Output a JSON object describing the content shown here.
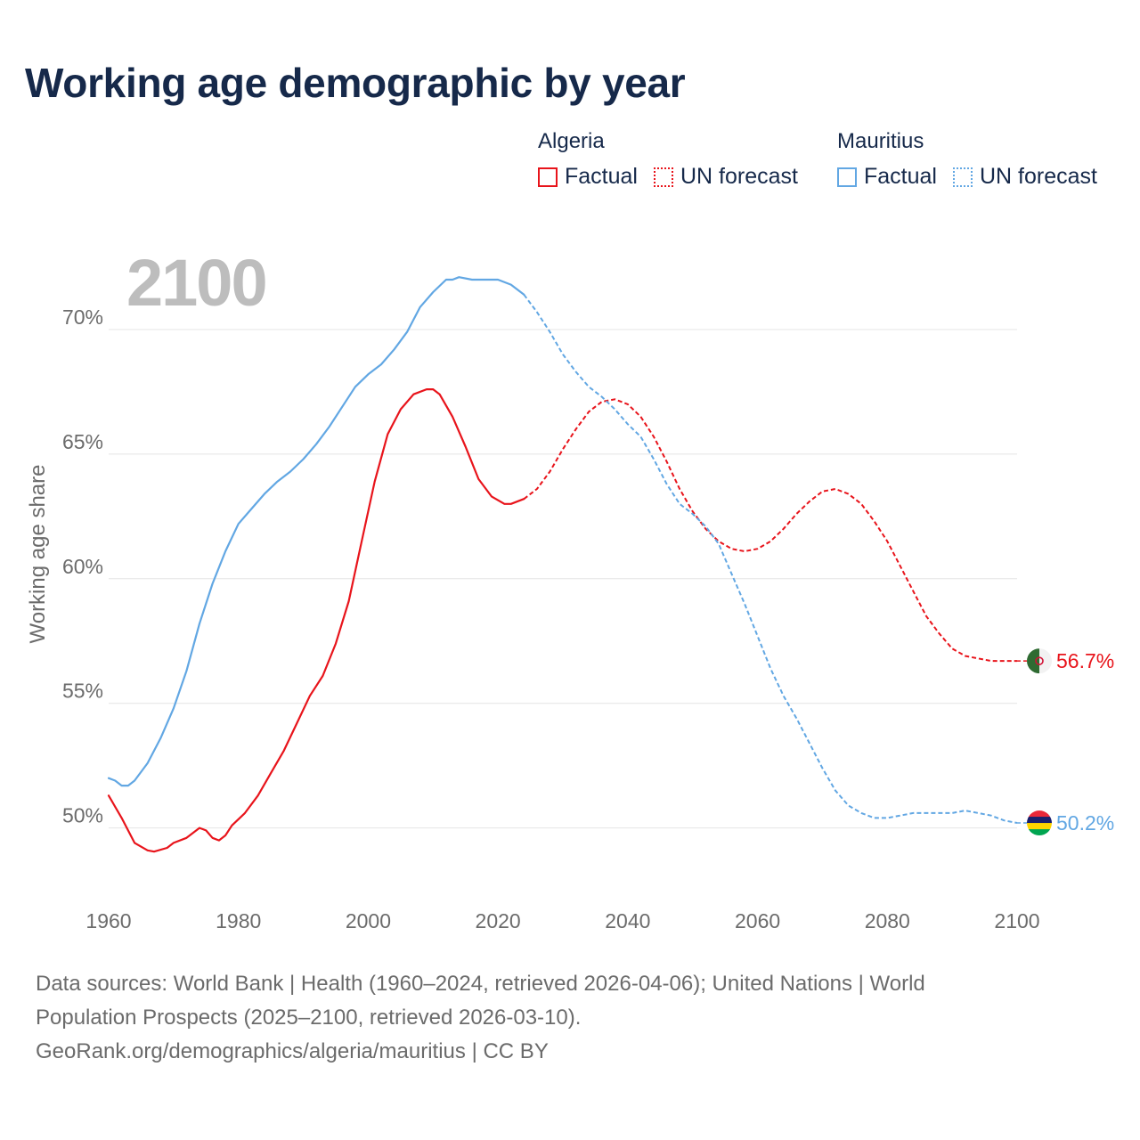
{
  "title": "Working age demographic by year",
  "legend": {
    "groups": [
      {
        "name": "Algeria",
        "factual_label": "Factual",
        "forecast_label": "UN forecast",
        "color": "#e8141b"
      },
      {
        "name": "Mauritius",
        "factual_label": "Factual",
        "forecast_label": "UN forecast",
        "color": "#62a7e3"
      }
    ]
  },
  "year_display": "2100",
  "footer": {
    "line1": "Data sources: World Bank | Health (1960–2024, retrieved 2026-04-06); United Nations | World",
    "line2": "Population Prospects (2025–2100, retrieved 2026-03-10).",
    "line3": "GeoRank.org/demographics/algeria/mauritius | CC BY"
  },
  "chart_data": {
    "type": "line",
    "title": "Working age demographic by year",
    "xlabel": "",
    "ylabel": "Working age share",
    "xlim": [
      1960,
      2100
    ],
    "ylim": [
      47.2,
      73.5
    ],
    "x_ticks": [
      1960,
      1980,
      2000,
      2020,
      2040,
      2060,
      2080,
      2100
    ],
    "x_tick_labels": [
      "1960",
      "1980",
      "2000",
      "2020",
      "2040",
      "2060",
      "2080",
      "2100"
    ],
    "y_ticks": [
      50,
      55,
      60,
      65,
      70
    ],
    "y_tick_labels": [
      "50%",
      "55%",
      "60%",
      "65%",
      "70%"
    ],
    "grid": true,
    "legend_position": "top-right",
    "forecast_start": 2024,
    "series": [
      {
        "name": "Algeria",
        "color": "#e8141b",
        "end_label": "56.7%",
        "flag": "algeria",
        "points": [
          [
            1960,
            51.3
          ],
          [
            1962,
            50.4
          ],
          [
            1964,
            49.4
          ],
          [
            1966,
            49.1
          ],
          [
            1967,
            49.05
          ],
          [
            1969,
            49.2
          ],
          [
            1970,
            49.4
          ],
          [
            1972,
            49.6
          ],
          [
            1974,
            50.0
          ],
          [
            1975,
            49.9
          ],
          [
            1976,
            49.6
          ],
          [
            1977,
            49.5
          ],
          [
            1978,
            49.7
          ],
          [
            1979,
            50.1
          ],
          [
            1981,
            50.6
          ],
          [
            1983,
            51.3
          ],
          [
            1985,
            52.2
          ],
          [
            1987,
            53.1
          ],
          [
            1989,
            54.2
          ],
          [
            1991,
            55.3
          ],
          [
            1993,
            56.1
          ],
          [
            1995,
            57.4
          ],
          [
            1997,
            59.1
          ],
          [
            1999,
            61.5
          ],
          [
            2001,
            63.9
          ],
          [
            2003,
            65.8
          ],
          [
            2005,
            66.8
          ],
          [
            2007,
            67.4
          ],
          [
            2009,
            67.6
          ],
          [
            2010,
            67.6
          ],
          [
            2011,
            67.4
          ],
          [
            2013,
            66.5
          ],
          [
            2015,
            65.3
          ],
          [
            2017,
            64.0
          ],
          [
            2019,
            63.3
          ],
          [
            2021,
            63.0
          ],
          [
            2022,
            63.0
          ],
          [
            2024,
            63.2
          ],
          [
            2026,
            63.6
          ],
          [
            2028,
            64.3
          ],
          [
            2030,
            65.2
          ],
          [
            2032,
            66.0
          ],
          [
            2034,
            66.7
          ],
          [
            2036,
            67.1
          ],
          [
            2038,
            67.2
          ],
          [
            2040,
            67.0
          ],
          [
            2042,
            66.5
          ],
          [
            2044,
            65.7
          ],
          [
            2046,
            64.7
          ],
          [
            2048,
            63.6
          ],
          [
            2050,
            62.7
          ],
          [
            2052,
            62.0
          ],
          [
            2054,
            61.5
          ],
          [
            2056,
            61.2
          ],
          [
            2058,
            61.1
          ],
          [
            2060,
            61.2
          ],
          [
            2062,
            61.5
          ],
          [
            2064,
            62.0
          ],
          [
            2066,
            62.6
          ],
          [
            2068,
            63.1
          ],
          [
            2070,
            63.5
          ],
          [
            2072,
            63.6
          ],
          [
            2074,
            63.4
          ],
          [
            2076,
            63.0
          ],
          [
            2078,
            62.3
          ],
          [
            2080,
            61.5
          ],
          [
            2082,
            60.5
          ],
          [
            2084,
            59.5
          ],
          [
            2086,
            58.5
          ],
          [
            2088,
            57.8
          ],
          [
            2090,
            57.2
          ],
          [
            2092,
            56.9
          ],
          [
            2094,
            56.8
          ],
          [
            2096,
            56.7
          ],
          [
            2098,
            56.7
          ],
          [
            2100,
            56.7
          ]
        ]
      },
      {
        "name": "Mauritius",
        "color": "#62a7e3",
        "end_label": "50.2%",
        "flag": "mauritius",
        "points": [
          [
            1960,
            52.0
          ],
          [
            1961,
            51.9
          ],
          [
            1962,
            51.7
          ],
          [
            1963,
            51.7
          ],
          [
            1964,
            51.9
          ],
          [
            1966,
            52.6
          ],
          [
            1968,
            53.6
          ],
          [
            1970,
            54.8
          ],
          [
            1972,
            56.3
          ],
          [
            1974,
            58.2
          ],
          [
            1976,
            59.8
          ],
          [
            1978,
            61.1
          ],
          [
            1980,
            62.2
          ],
          [
            1982,
            62.8
          ],
          [
            1984,
            63.4
          ],
          [
            1986,
            63.9
          ],
          [
            1988,
            64.3
          ],
          [
            1990,
            64.8
          ],
          [
            1992,
            65.4
          ],
          [
            1994,
            66.1
          ],
          [
            1996,
            66.9
          ],
          [
            1998,
            67.7
          ],
          [
            2000,
            68.2
          ],
          [
            2002,
            68.6
          ],
          [
            2004,
            69.2
          ],
          [
            2006,
            69.9
          ],
          [
            2008,
            70.9
          ],
          [
            2010,
            71.5
          ],
          [
            2012,
            72.0
          ],
          [
            2013,
            72.0
          ],
          [
            2014,
            72.1
          ],
          [
            2016,
            72.0
          ],
          [
            2018,
            72.0
          ],
          [
            2020,
            72.0
          ],
          [
            2022,
            71.8
          ],
          [
            2024,
            71.4
          ],
          [
            2026,
            70.7
          ],
          [
            2028,
            69.9
          ],
          [
            2030,
            69.0
          ],
          [
            2032,
            68.3
          ],
          [
            2034,
            67.7
          ],
          [
            2036,
            67.3
          ],
          [
            2038,
            66.8
          ],
          [
            2040,
            66.2
          ],
          [
            2042,
            65.7
          ],
          [
            2044,
            64.8
          ],
          [
            2046,
            63.8
          ],
          [
            2048,
            63.0
          ],
          [
            2050,
            62.6
          ],
          [
            2052,
            62.1
          ],
          [
            2054,
            61.4
          ],
          [
            2056,
            60.2
          ],
          [
            2058,
            59.0
          ],
          [
            2060,
            57.7
          ],
          [
            2062,
            56.4
          ],
          [
            2064,
            55.3
          ],
          [
            2066,
            54.4
          ],
          [
            2068,
            53.4
          ],
          [
            2070,
            52.4
          ],
          [
            2072,
            51.5
          ],
          [
            2074,
            50.9
          ],
          [
            2076,
            50.6
          ],
          [
            2078,
            50.4
          ],
          [
            2080,
            50.4
          ],
          [
            2082,
            50.5
          ],
          [
            2084,
            50.6
          ],
          [
            2086,
            50.6
          ],
          [
            2088,
            50.6
          ],
          [
            2090,
            50.6
          ],
          [
            2092,
            50.7
          ],
          [
            2094,
            50.6
          ],
          [
            2096,
            50.5
          ],
          [
            2098,
            50.3
          ],
          [
            2100,
            50.2
          ]
        ]
      }
    ]
  }
}
